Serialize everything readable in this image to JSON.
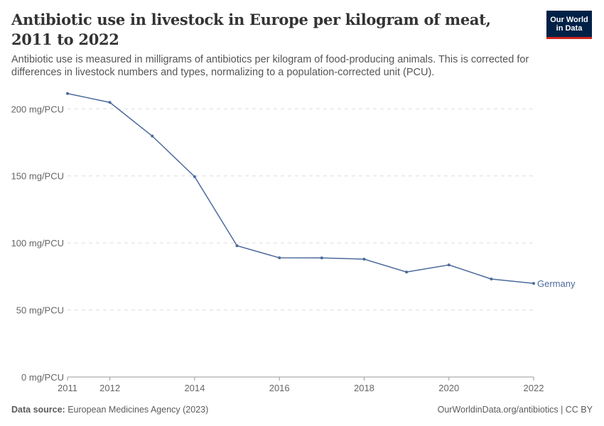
{
  "title": "Antibiotic use in livestock in Europe per kilogram of meat, 2011 to 2022",
  "subtitle": "Antibiotic use is measured in milligrams of antibiotics per kilogram of food-producing animals. This is corrected for differences in livestock numbers and types, normalizing to a population-corrected unit (PCU).",
  "logo": {
    "line1": "Our World",
    "line2": "in Data"
  },
  "footer": {
    "source_label": "Data source:",
    "source": "European Medicines Agency (2023)",
    "right": "OurWorldinData.org/antibiotics | CC BY"
  },
  "colors": {
    "series": "#4c6a9c",
    "grid": "#dddddd",
    "text": "#666666"
  },
  "chart_data": {
    "type": "line",
    "title": "Antibiotic use in livestock in Europe per kilogram of meat, 2011 to 2022",
    "xlim": [
      2011,
      2022
    ],
    "ylim": [
      0,
      200
    ],
    "x_ticks": [
      2011,
      2012,
      2014,
      2016,
      2018,
      2020,
      2022
    ],
    "y_ticks": [
      {
        "v": 0,
        "label": "0 mg/PCU"
      },
      {
        "v": 50,
        "label": "50 mg/PCU"
      },
      {
        "v": 100,
        "label": "100 mg/PCU"
      },
      {
        "v": 150,
        "label": "150 mg/PCU"
      },
      {
        "v": 200,
        "label": "200 mg/PCU"
      }
    ],
    "grid": true,
    "series": [
      {
        "name": "Germany",
        "x": [
          2011,
          2012,
          2013,
          2014,
          2015,
          2016,
          2017,
          2018,
          2019,
          2020,
          2021,
          2022
        ],
        "values": [
          211.4,
          204.8,
          179.7,
          149.4,
          97.9,
          88.9,
          88.8,
          87.9,
          78.3,
          83.6,
          73.1,
          69.8
        ]
      }
    ]
  }
}
